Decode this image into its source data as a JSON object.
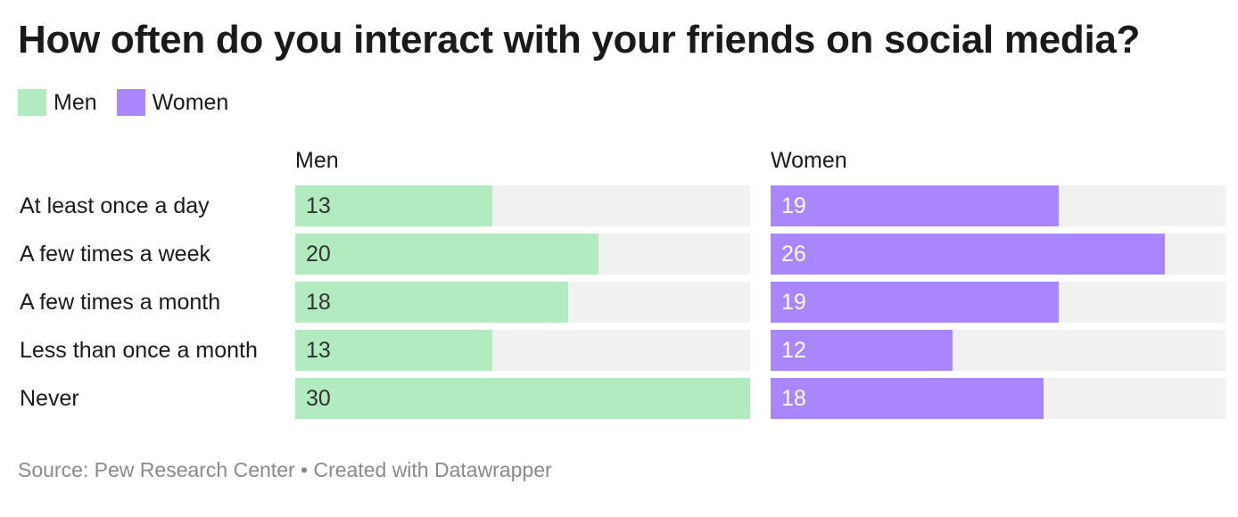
{
  "title": "How often do you interact with your friends on social media?",
  "legend": [
    {
      "name": "Men",
      "color": "#b3ebc1"
    },
    {
      "name": "Women",
      "color": "#a986fd"
    }
  ],
  "footer": {
    "source": "Source: Pew Research Center • Created with Datawrapper"
  },
  "chart_data": {
    "type": "bar",
    "orientation": "horizontal",
    "title": "How often do you interact with your friends on social media?",
    "categories": [
      "At least once a day",
      "A few times a week",
      "A few times a month",
      "Less than once a month",
      "Never"
    ],
    "series": [
      {
        "name": "Men",
        "values": [
          13,
          20,
          18,
          13,
          30
        ],
        "color": "#b3ebc1",
        "label_color": "#333333"
      },
      {
        "name": "Women",
        "values": [
          19,
          26,
          19,
          12,
          18
        ],
        "color": "#a986fd",
        "label_color": "#ffffff"
      }
    ],
    "xlim": [
      0,
      30
    ],
    "track_color": "#f1f1f1",
    "legend": "top-left",
    "grid": false
  }
}
